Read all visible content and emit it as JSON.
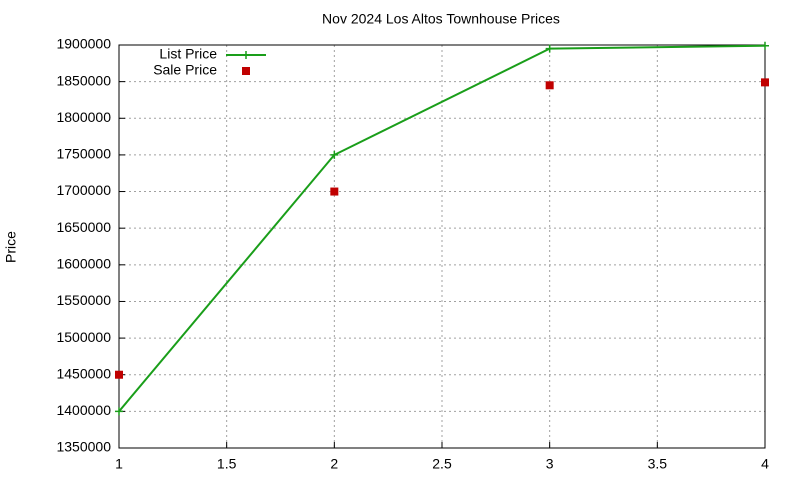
{
  "chart_data": {
    "type": "line",
    "title": "Nov 2024 Los Altos Townhouse Prices",
    "y_label": "Price",
    "x": [
      1,
      2,
      3,
      4
    ],
    "series": [
      {
        "name": "List Price",
        "color": "#1a9e1a",
        "style": "linespoints",
        "values": [
          1400000,
          1750000,
          1895000,
          1899000
        ]
      },
      {
        "name": "Sale Price",
        "color": "#c00000",
        "style": "points",
        "values": [
          1450000,
          1700000,
          1845000,
          1849000
        ]
      }
    ],
    "xlim": [
      1,
      4
    ],
    "xticks": [
      1,
      1.5,
      2,
      2.5,
      3,
      3.5,
      4
    ],
    "ylim": [
      1350000,
      1900000
    ],
    "yticks": [
      1350000,
      1400000,
      1450000,
      1500000,
      1550000,
      1600000,
      1650000,
      1700000,
      1750000,
      1800000,
      1850000,
      1900000
    ],
    "grid": true,
    "legend": "top-left"
  }
}
